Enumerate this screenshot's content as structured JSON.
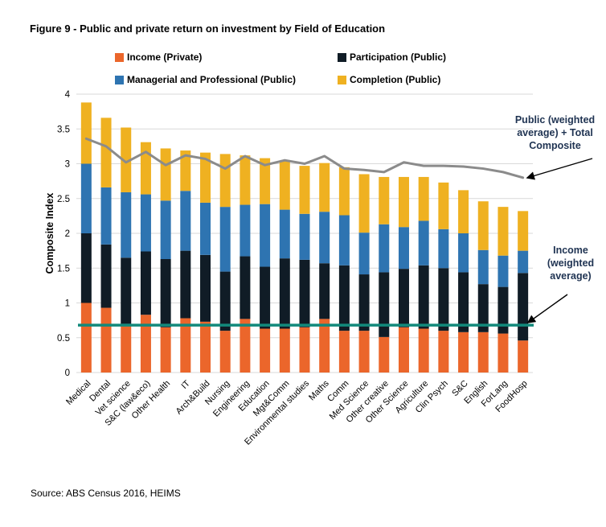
{
  "figure": {
    "title": "Figure 9 - Public and private return on investment by Field of Education"
  },
  "source": "Source: ABS Census 2016, HEIMS",
  "legend": {
    "items": [
      {
        "label": "Income (Private)",
        "color": "#EB662B"
      },
      {
        "label": "Participation (Public)",
        "color": "#101C26"
      },
      {
        "label": "Managerial and Professional (Public)",
        "color": "#2E74B1"
      },
      {
        "label": "Completion (Public)",
        "color": "#EFB121"
      }
    ]
  },
  "annotations": {
    "composite_line": "Public (weighted average) + Total Composite",
    "income_line": "Income (weighted average)"
  },
  "chart_data": {
    "type": "bar",
    "subtype": "stacked-bar-with-line",
    "title": "Figure 9 - Public and private return on investment by Field of Education",
    "xlabel": "",
    "ylabel": "Composite Index",
    "ylim": [
      0,
      4
    ],
    "yticks": [
      "0",
      "0.5",
      "1",
      "1.5",
      "2",
      "2.5",
      "3",
      "3.5",
      "4"
    ],
    "grid": true,
    "legend_position": "top",
    "categories": [
      "Medical",
      "Dental",
      "Vet science",
      "S&C (law&eco)",
      "Other Health",
      "IT",
      "Arch&Build",
      "Nursing",
      "Engineering",
      "Education",
      "Mgt&Comm",
      "Environmental studies",
      "Maths",
      "Comm",
      "Med Science",
      "Other creative",
      "Other Science",
      "Agriculture",
      "Clin Psych",
      "S&C",
      "English",
      "ForLang",
      "FoodHosp"
    ],
    "series": [
      {
        "name": "Income (Private)",
        "type": "stack",
        "color": "#EB662B",
        "values": [
          1.0,
          0.93,
          0.7,
          0.83,
          0.65,
          0.78,
          0.73,
          0.6,
          0.77,
          0.63,
          0.63,
          0.65,
          0.77,
          0.6,
          0.6,
          0.51,
          0.65,
          0.63,
          0.6,
          0.58,
          0.58,
          0.56,
          0.46
        ]
      },
      {
        "name": "Participation (Public)",
        "type": "stack",
        "color": "#101C26",
        "values": [
          1.0,
          0.91,
          0.95,
          0.91,
          0.98,
          0.97,
          0.96,
          0.85,
          0.9,
          0.89,
          1.01,
          0.97,
          0.8,
          0.94,
          0.81,
          0.93,
          0.84,
          0.91,
          0.9,
          0.86,
          0.69,
          0.67,
          0.97
        ]
      },
      {
        "name": "Managerial and Professional (Public)",
        "type": "stack",
        "color": "#2E74B1",
        "values": [
          1.0,
          0.82,
          0.94,
          0.82,
          0.84,
          0.86,
          0.75,
          0.93,
          0.74,
          0.9,
          0.7,
          0.66,
          0.74,
          0.72,
          0.6,
          0.69,
          0.6,
          0.64,
          0.56,
          0.56,
          0.49,
          0.45,
          0.32
        ]
      },
      {
        "name": "Completion (Public)",
        "type": "stack",
        "color": "#EFB121",
        "values": [
          0.88,
          1.0,
          0.93,
          0.75,
          0.75,
          0.58,
          0.72,
          0.76,
          0.71,
          0.66,
          0.7,
          0.69,
          0.7,
          0.69,
          0.84,
          0.68,
          0.72,
          0.63,
          0.67,
          0.62,
          0.7,
          0.7,
          0.57
        ]
      },
      {
        "name": "Public (weighted average) + Total Composite",
        "type": "line",
        "color": "#8B8B8B",
        "values": [
          3.36,
          3.25,
          3.02,
          3.17,
          2.98,
          3.12,
          3.07,
          2.93,
          3.11,
          2.98,
          3.05,
          3.0,
          3.11,
          2.93,
          2.91,
          2.88,
          3.02,
          2.97,
          2.97,
          2.96,
          2.93,
          2.88,
          2.8
        ]
      },
      {
        "name": "Income (weighted average)",
        "type": "hline",
        "color": "#12897B",
        "value": 0.68
      }
    ]
  }
}
